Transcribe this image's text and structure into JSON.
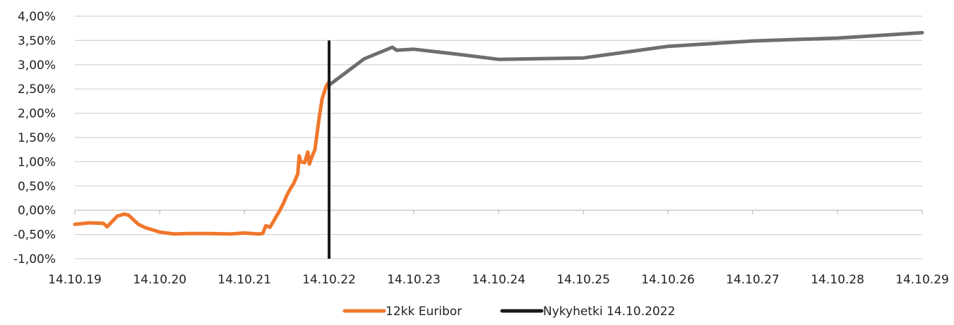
{
  "chart_data": {
    "type": "line",
    "x_ticks": [
      "14.10.19",
      "14.10.20",
      "14.10.21",
      "14.10.22",
      "14.10.23",
      "14.10.24",
      "14.10.25",
      "14.10.26",
      "14.10.27",
      "14.10.28",
      "14.10.29"
    ],
    "y_ticks": [
      "-1,00%",
      "-0,50%",
      "0,00%",
      "0,50%",
      "1,00%",
      "1,50%",
      "2,00%",
      "2,50%",
      "3,00%",
      "3,50%",
      "4,00%"
    ],
    "xlim": [
      "14.10.19",
      "14.10.29"
    ],
    "ylim": [
      -1.0,
      4.0
    ],
    "grid": true,
    "legend_position": "bottom-center",
    "series": [
      {
        "name": "12kk Euribor",
        "color": "#f0772b",
        "points": [
          [
            "14.10.19",
            -0.29
          ],
          [
            "14.12.19",
            -0.26
          ],
          [
            "14.02.20",
            -0.27
          ],
          [
            "01.03.20",
            -0.34
          ],
          [
            "14.04.20",
            -0.12
          ],
          [
            "14.05.20",
            -0.08
          ],
          [
            "01.06.20",
            -0.1
          ],
          [
            "14.07.20",
            -0.29
          ],
          [
            "14.08.20",
            -0.36
          ],
          [
            "14.10.20",
            -0.45
          ],
          [
            "14.12.20",
            -0.49
          ],
          [
            "14.02.21",
            -0.48
          ],
          [
            "14.05.21",
            -0.48
          ],
          [
            "14.08.21",
            -0.49
          ],
          [
            "14.10.21",
            -0.47
          ],
          [
            "14.12.21",
            -0.49
          ],
          [
            "01.01.22",
            -0.48
          ],
          [
            "14.01.22",
            -0.32
          ],
          [
            "01.02.22",
            -0.35
          ],
          [
            "14.02.22",
            -0.25
          ],
          [
            "01.03.22",
            -0.12
          ],
          [
            "14.03.22",
            -0.02
          ],
          [
            "01.04.22",
            0.15
          ],
          [
            "14.04.22",
            0.3
          ],
          [
            "01.05.22",
            0.45
          ],
          [
            "14.05.22",
            0.55
          ],
          [
            "01.06.22",
            0.75
          ],
          [
            "07.06.22",
            1.12
          ],
          [
            "14.06.22",
            1.0
          ],
          [
            "01.07.22",
            0.98
          ],
          [
            "14.07.22",
            1.2
          ],
          [
            "21.07.22",
            0.95
          ],
          [
            "01.08.22",
            1.1
          ],
          [
            "14.08.22",
            1.25
          ],
          [
            "01.09.22",
            1.9
          ],
          [
            "14.09.22",
            2.3
          ],
          [
            "01.10.22",
            2.55
          ],
          [
            "14.10.22",
            2.65
          ]
        ]
      },
      {
        "name": "",
        "color": "#6e6e6e",
        "points": [
          [
            "14.10.22",
            2.58
          ],
          [
            "14.03.23",
            3.12
          ],
          [
            "14.07.23",
            3.36
          ],
          [
            "01.08.23",
            3.3
          ],
          [
            "14.10.23",
            3.32
          ],
          [
            "14.04.24",
            3.22
          ],
          [
            "14.10.24",
            3.11
          ],
          [
            "14.10.25",
            3.14
          ],
          [
            "14.10.26",
            3.38
          ],
          [
            "14.10.27",
            3.49
          ],
          [
            "14.10.28",
            3.55
          ],
          [
            "14.10.29",
            3.66
          ]
        ]
      }
    ],
    "annotations": [
      {
        "name": "Nykyhetki 14.10.2022",
        "x": "14.10.22",
        "type": "vline",
        "color": "#1a1a1a",
        "ymin": -1.0,
        "ymax": 3.5
      }
    ],
    "legend": [
      {
        "label": "12kk Euribor",
        "color": "#f0772b"
      },
      {
        "label": "Nykyhetki 14.10.2022",
        "color": "#1a1a1a"
      }
    ]
  }
}
